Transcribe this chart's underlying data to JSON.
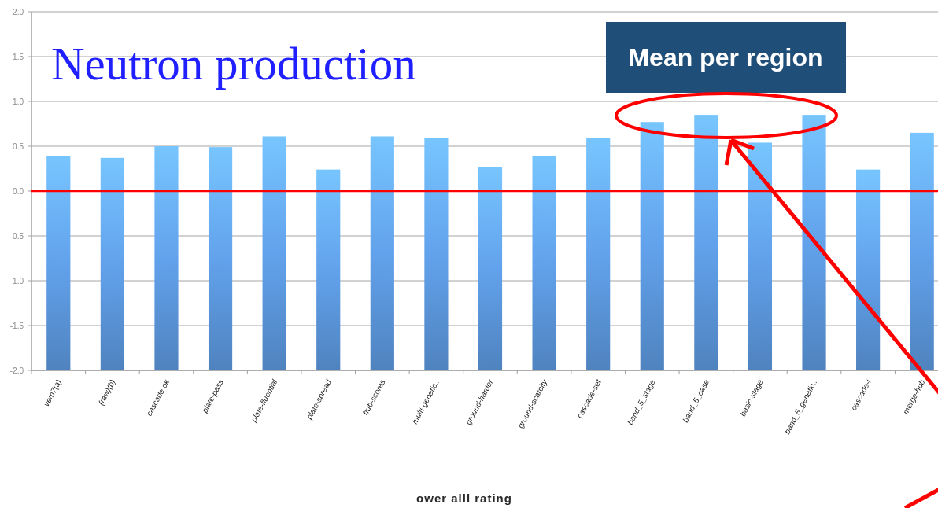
{
  "chart_data": {
    "type": "bar",
    "title": "Neutron production",
    "xlabel": "ower alll rating",
    "annotations": [
      "Mean per region"
    ],
    "categories": [
      "vem7(a)",
      "(raw)(b)",
      "cascade ok",
      "plate-pass",
      "plate-fluential",
      "plate-spread",
      "hub-scores",
      "multi-genetic..",
      "ground-harder",
      "ground-scarcity",
      "cascade-set",
      "band_5_stage",
      "band_5_case",
      "basic-stage",
      "band_5_genetic..",
      "cascade-i",
      "merge-hub"
    ],
    "base": [
      -2,
      -2,
      -2,
      -2,
      -2,
      -2,
      -2,
      -2,
      -2,
      -2,
      -2,
      -2,
      -2,
      -2,
      -2,
      -2,
      -2
    ],
    "values": [
      2.39,
      2.37,
      2.5,
      2.49,
      2.61,
      2.24,
      2.61,
      2.59,
      2.27,
      2.39,
      2.59,
      2.77,
      2.85,
      2.54,
      2.85,
      2.24,
      2.65
    ],
    "color": "#62a2ec",
    "ylim": [
      -2,
      2
    ],
    "yticks": [
      {
        "value": -2,
        "label": "-2.0"
      },
      {
        "value": -1.5,
        "label": "-1.5"
      },
      {
        "value": -1,
        "label": "-1.0"
      },
      {
        "value": -0.5,
        "label": "-0.5"
      },
      {
        "value": 0,
        "label": "0.0"
      },
      {
        "value": 0.5,
        "label": "0.5"
      },
      {
        "value": 1,
        "label": "1.0"
      },
      {
        "value": 1.5,
        "label": "1.5"
      },
      {
        "value": 2,
        "label": "2.0"
      }
    ],
    "grid": true,
    "ref_lines": [
      {
        "axis": "y",
        "value": 0,
        "color": "#ff0000"
      }
    ]
  }
}
